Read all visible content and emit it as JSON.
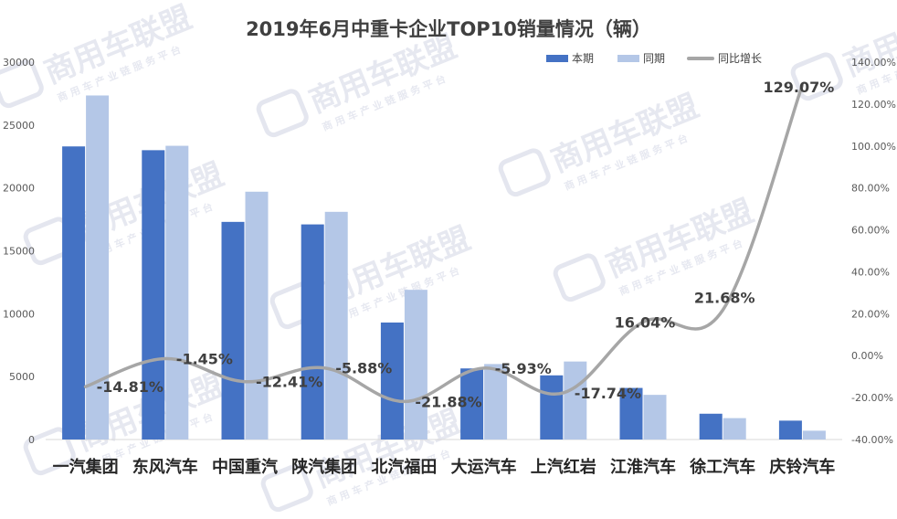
{
  "chart_data": {
    "type": "bar",
    "title": "2019年6月中重卡企业TOP10销量情况（辆）",
    "categories": [
      "一汽集团",
      "东风汽车",
      "中国重汽",
      "陕汽集团",
      "北汽福田",
      "大运汽车",
      "上汽红岩",
      "江淮汽车",
      "徐工汽车",
      "庆铃汽车"
    ],
    "series": [
      {
        "name": "本期",
        "type": "bar",
        "axis": "left",
        "color": "#4472c4",
        "values": [
          23300,
          23000,
          17300,
          17100,
          9300,
          5650,
          5100,
          4100,
          2050,
          1500
        ]
      },
      {
        "name": "同期",
        "type": "bar",
        "axis": "left",
        "color": "#b4c7e7",
        "values": [
          27350,
          23350,
          19700,
          18100,
          11900,
          6000,
          6200,
          3550,
          1700,
          700
        ]
      },
      {
        "name": "同比增长",
        "type": "line",
        "axis": "right",
        "color": "#a6a6a6",
        "values": [
          -14.81,
          -1.45,
          -12.41,
          -5.88,
          -21.88,
          -5.93,
          -17.74,
          16.04,
          21.68,
          129.07
        ],
        "labels": [
          "-14.81%",
          "-1.45%",
          "-12.41%",
          "-5.88%",
          "-21.88%",
          "-5.93%",
          "-17.74%",
          "16.04%",
          "21.68%",
          "129.07%"
        ]
      }
    ],
    "y_left": {
      "min": 0,
      "max": 30000,
      "ticks": [
        "0",
        "5000",
        "10000",
        "15000",
        "20000",
        "25000",
        "30000"
      ]
    },
    "y_right": {
      "min": -40,
      "max": 140,
      "ticks": [
        "-40.00%",
        "-20.00%",
        "0.00%",
        "20.00%",
        "40.00%",
        "60.00%",
        "80.00%",
        "100.00%",
        "120.00%",
        "140.00%"
      ]
    },
    "legend_position": "top-right",
    "grid": false,
    "watermark": {
      "name": "商用车联盟",
      "tagline": "商 用 车 产 业 链 服 务 平 台"
    }
  }
}
